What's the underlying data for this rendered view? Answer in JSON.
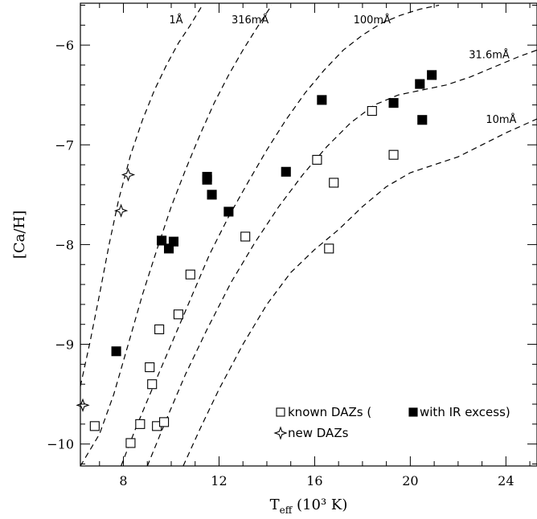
{
  "chart_data": {
    "type": "scatter",
    "title": "",
    "xlabel": "T",
    "xlabel_sub": "eff",
    "xlabel_rest": " (10³ K)",
    "ylabel": "[Ca/H]",
    "xlim": [
      6.2,
      25.3
    ],
    "ylim": [
      -10.22,
      -5.58
    ],
    "x_ticks": [
      8,
      12,
      16,
      20,
      24
    ],
    "y_ticks": [
      -10,
      -9,
      -8,
      -7,
      -6
    ],
    "grid": false,
    "legend_position": "bottom-right",
    "legend": {
      "known": "known DAZs (",
      "ir": "with IR excess)",
      "new": "new DAZs"
    },
    "equivalent_width_curves": [
      {
        "label": "1Å",
        "label_x": 10.2,
        "label_y": -5.78,
        "points": [
          [
            6.2,
            -9.42
          ],
          [
            6.6,
            -8.98
          ],
          [
            7.0,
            -8.5
          ],
          [
            7.4,
            -8.0
          ],
          [
            7.8,
            -7.55
          ],
          [
            8.3,
            -7.1
          ],
          [
            8.8,
            -6.75
          ],
          [
            9.3,
            -6.45
          ],
          [
            9.8,
            -6.2
          ],
          [
            10.3,
            -5.98
          ],
          [
            10.8,
            -5.8
          ],
          [
            11.3,
            -5.6
          ]
        ]
      },
      {
        "label": "316mÅ",
        "label_x": 13.3,
        "label_y": -5.78,
        "points": [
          [
            6.2,
            -10.22
          ],
          [
            7.0,
            -9.9
          ],
          [
            7.6,
            -9.5
          ],
          [
            8.2,
            -9.0
          ],
          [
            8.8,
            -8.5
          ],
          [
            9.4,
            -8.05
          ],
          [
            10.0,
            -7.62
          ],
          [
            10.6,
            -7.25
          ],
          [
            11.2,
            -6.9
          ],
          [
            11.8,
            -6.58
          ],
          [
            12.4,
            -6.3
          ],
          [
            13.0,
            -6.05
          ],
          [
            13.6,
            -5.82
          ],
          [
            14.2,
            -5.6
          ]
        ]
      },
      {
        "label": "100mÅ",
        "label_x": 18.4,
        "label_y": -5.78,
        "points": [
          [
            7.9,
            -10.22
          ],
          [
            8.5,
            -9.85
          ],
          [
            9.2,
            -9.45
          ],
          [
            10.0,
            -9.0
          ],
          [
            10.8,
            -8.55
          ],
          [
            11.6,
            -8.1
          ],
          [
            12.4,
            -7.72
          ],
          [
            13.2,
            -7.38
          ],
          [
            14.0,
            -7.05
          ],
          [
            14.8,
            -6.75
          ],
          [
            15.6,
            -6.48
          ],
          [
            16.4,
            -6.25
          ],
          [
            17.2,
            -6.05
          ],
          [
            18.0,
            -5.9
          ],
          [
            18.8,
            -5.78
          ],
          [
            19.6,
            -5.7
          ],
          [
            20.4,
            -5.64
          ],
          [
            21.2,
            -5.6
          ]
        ]
      },
      {
        "label": "31.6mÅ",
        "label_x": 23.3,
        "label_y": -6.13,
        "points": [
          [
            9.0,
            -10.22
          ],
          [
            9.8,
            -9.75
          ],
          [
            10.6,
            -9.3
          ],
          [
            11.5,
            -8.85
          ],
          [
            12.5,
            -8.38
          ],
          [
            13.5,
            -7.98
          ],
          [
            14.5,
            -7.62
          ],
          [
            15.5,
            -7.3
          ],
          [
            16.5,
            -7.02
          ],
          [
            17.5,
            -6.78
          ],
          [
            18.5,
            -6.6
          ],
          [
            19.5,
            -6.5
          ],
          [
            20.5,
            -6.45
          ],
          [
            21.5,
            -6.4
          ],
          [
            22.5,
            -6.32
          ],
          [
            23.5,
            -6.22
          ],
          [
            24.5,
            -6.12
          ],
          [
            25.3,
            -6.05
          ]
        ]
      },
      {
        "label": "10mÅ",
        "label_x": 23.8,
        "label_y": -6.78,
        "points": [
          [
            10.5,
            -10.22
          ],
          [
            11.2,
            -9.85
          ],
          [
            12.0,
            -9.45
          ],
          [
            13.0,
            -9.0
          ],
          [
            14.0,
            -8.6
          ],
          [
            15.0,
            -8.28
          ],
          [
            16.0,
            -8.05
          ],
          [
            17.0,
            -7.85
          ],
          [
            18.0,
            -7.62
          ],
          [
            19.0,
            -7.42
          ],
          [
            20.0,
            -7.28
          ],
          [
            21.0,
            -7.2
          ],
          [
            22.0,
            -7.12
          ],
          [
            23.0,
            -7.0
          ],
          [
            24.0,
            -6.88
          ],
          [
            25.3,
            -6.74
          ]
        ]
      }
    ],
    "series": [
      {
        "name": "known DAZs",
        "marker": "open-square",
        "points": [
          [
            6.8,
            -9.82
          ],
          [
            8.3,
            -9.99
          ],
          [
            8.7,
            -9.8
          ],
          [
            9.1,
            -9.23
          ],
          [
            9.2,
            -9.4
          ],
          [
            9.4,
            -9.82
          ],
          [
            9.5,
            -8.85
          ],
          [
            9.7,
            -9.78
          ],
          [
            10.3,
            -8.7
          ],
          [
            10.8,
            -8.3
          ],
          [
            13.1,
            -7.92
          ],
          [
            16.1,
            -7.15
          ],
          [
            16.6,
            -8.04
          ],
          [
            16.8,
            -7.38
          ],
          [
            18.4,
            -6.66
          ],
          [
            19.3,
            -7.1
          ]
        ]
      },
      {
        "name": "with IR excess",
        "marker": "filled-square",
        "points": [
          [
            7.7,
            -9.07
          ],
          [
            9.6,
            -7.96
          ],
          [
            9.9,
            -8.04
          ],
          [
            10.1,
            -7.97
          ],
          [
            11.5,
            -7.32
          ],
          [
            11.5,
            -7.35
          ],
          [
            11.7,
            -7.5
          ],
          [
            12.4,
            -7.67
          ],
          [
            14.8,
            -7.27
          ],
          [
            16.3,
            -6.55
          ],
          [
            19.3,
            -6.58
          ],
          [
            20.4,
            -6.39
          ],
          [
            20.5,
            -6.75
          ],
          [
            20.9,
            -6.3
          ]
        ]
      },
      {
        "name": "new DAZs",
        "marker": "star",
        "points": [
          [
            6.3,
            -9.61
          ],
          [
            7.9,
            -7.66
          ],
          [
            8.2,
            -7.3
          ]
        ]
      }
    ]
  }
}
